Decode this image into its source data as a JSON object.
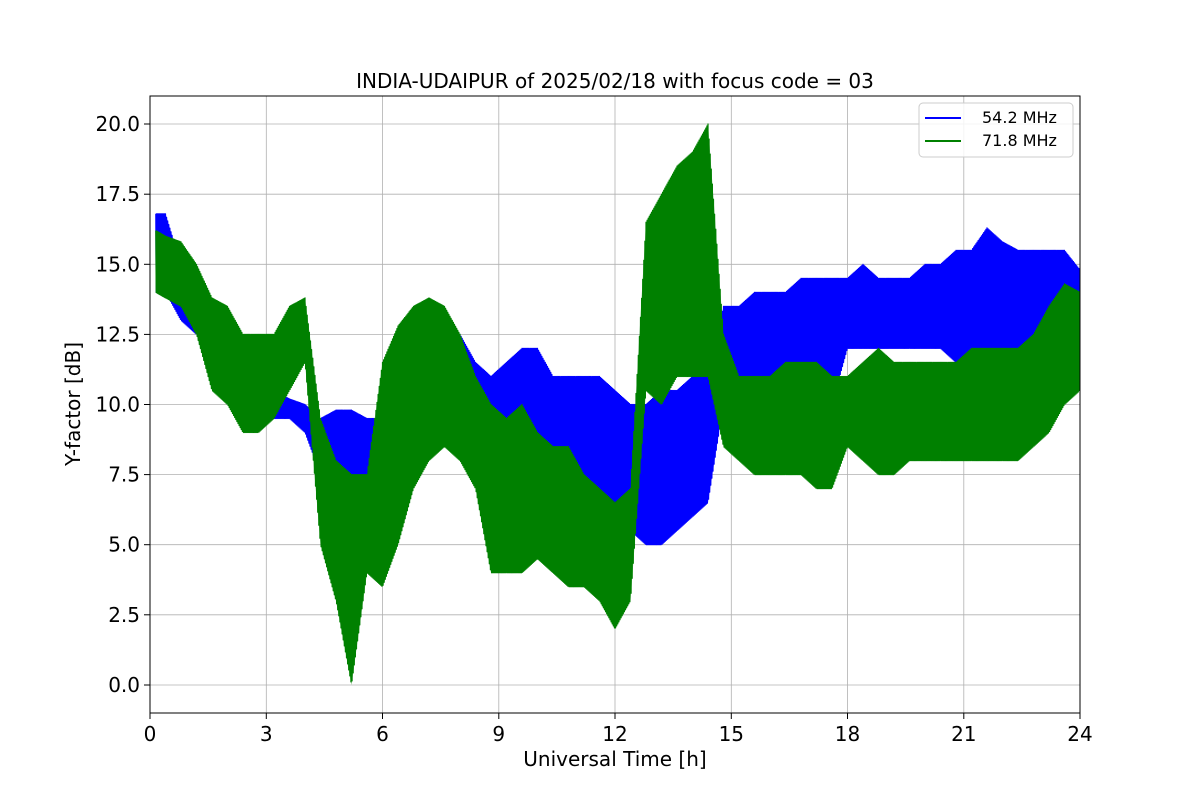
{
  "chart_data": {
    "type": "line",
    "title": "INDIA-UDAIPUR of 2025/02/18 with focus code = 03",
    "xlabel": "Universal Time [h]",
    "ylabel": "Y-factor [dB]",
    "xlim": [
      0,
      24
    ],
    "ylim": [
      -1,
      21
    ],
    "xticks": [
      0,
      3,
      6,
      9,
      12,
      15,
      18,
      21,
      24
    ],
    "xtick_labels": [
      "0",
      "3",
      "6",
      "9",
      "12",
      "15",
      "18",
      "21",
      "24"
    ],
    "yticks": [
      0,
      2.5,
      5,
      7.5,
      10,
      12.5,
      15,
      17.5,
      20
    ],
    "ytick_labels": [
      "0.0",
      "2.5",
      "5.0",
      "7.5",
      "10.0",
      "12.5",
      "15.0",
      "17.5",
      "20.0"
    ],
    "grid": true,
    "legend_position": "top-right",
    "colors": {
      "54.2 MHz": "#0000ff",
      "71.8 MHz": "#008000"
    },
    "series_style": "dense noisy trace; each series is drawn as a band between its lower and upper envelope",
    "series": [
      {
        "name": "54.2 MHz",
        "color": "#0000ff",
        "x": [
          0.15,
          0.4,
          0.8,
          1.2,
          1.6,
          2.0,
          2.4,
          2.8,
          3.2,
          3.6,
          4.0,
          4.4,
          4.8,
          5.2,
          5.6,
          6.0,
          6.4,
          6.8,
          7.2,
          7.6,
          8.0,
          8.4,
          8.8,
          9.2,
          9.6,
          10.0,
          10.4,
          10.8,
          11.2,
          11.6,
          12.0,
          12.4,
          12.8,
          13.2,
          13.6,
          14.0,
          14.4,
          14.8,
          15.2,
          15.6,
          16.0,
          16.4,
          16.8,
          17.2,
          17.6,
          18.0,
          18.4,
          18.8,
          19.2,
          19.6,
          20.0,
          20.4,
          20.8,
          21.2,
          21.6,
          22.0,
          22.4,
          22.8,
          23.2,
          23.6,
          24.0
        ],
        "lower": [
          14.0,
          14.0,
          13.0,
          12.5,
          11.0,
          10.0,
          9.5,
          9.5,
          9.5,
          9.5,
          9.0,
          7.5,
          7.0,
          7.0,
          7.0,
          6.5,
          7.5,
          8.0,
          8.5,
          8.5,
          8.5,
          7.5,
          7.0,
          7.0,
          6.5,
          7.0,
          6.0,
          6.0,
          6.0,
          6.5,
          5.5,
          5.5,
          5.0,
          5.0,
          5.5,
          6.0,
          6.5,
          10.0,
          10.0,
          10.5,
          10.5,
          10.5,
          10.5,
          10.0,
          10.0,
          12.0,
          12.0,
          12.0,
          12.0,
          12.0,
          12.0,
          12.0,
          11.5,
          12.0,
          12.0,
          12.0,
          12.0,
          12.5,
          12.5,
          13.0,
          13.0
        ],
        "upper": [
          16.8,
          16.8,
          15.0,
          14.0,
          13.5,
          12.5,
          11.5,
          10.5,
          10.5,
          10.2,
          10.0,
          9.5,
          9.8,
          9.8,
          9.5,
          9.5,
          10.5,
          11.0,
          12.5,
          12.5,
          12.5,
          11.5,
          11.0,
          11.5,
          12.0,
          12.0,
          11.0,
          11.0,
          11.0,
          11.0,
          10.5,
          10.0,
          10.0,
          10.5,
          10.5,
          11.0,
          11.0,
          13.5,
          13.5,
          14.0,
          14.0,
          14.0,
          14.5,
          14.5,
          14.5,
          14.5,
          15.0,
          14.5,
          14.5,
          14.5,
          15.0,
          15.0,
          15.5,
          15.5,
          16.3,
          15.8,
          15.5,
          15.5,
          15.5,
          15.5,
          14.8
        ]
      },
      {
        "name": "71.8 MHz",
        "color": "#008000",
        "x": [
          0.15,
          0.4,
          0.8,
          1.2,
          1.6,
          2.0,
          2.4,
          2.8,
          3.2,
          3.6,
          4.0,
          4.4,
          4.8,
          5.2,
          5.6,
          6.0,
          6.4,
          6.8,
          7.2,
          7.6,
          8.0,
          8.4,
          8.8,
          9.2,
          9.6,
          10.0,
          10.4,
          10.8,
          11.2,
          11.6,
          12.0,
          12.4,
          12.8,
          13.2,
          13.6,
          14.0,
          14.4,
          14.8,
          15.2,
          15.6,
          16.0,
          16.4,
          16.8,
          17.2,
          17.6,
          18.0,
          18.4,
          18.8,
          19.2,
          19.6,
          20.0,
          20.4,
          20.8,
          21.2,
          21.6,
          22.0,
          22.4,
          22.8,
          23.2,
          23.6,
          24.0
        ],
        "lower": [
          14.0,
          13.8,
          13.5,
          12.5,
          10.5,
          10.0,
          9.0,
          9.0,
          9.5,
          10.5,
          11.5,
          5.0,
          3.0,
          0.0,
          4.0,
          3.5,
          5.0,
          7.0,
          8.0,
          8.5,
          8.0,
          7.0,
          4.0,
          4.0,
          4.0,
          4.5,
          4.0,
          3.5,
          3.5,
          3.0,
          2.0,
          3.0,
          10.5,
          10.0,
          11.0,
          11.0,
          11.0,
          8.5,
          8.0,
          7.5,
          7.5,
          7.5,
          7.5,
          7.0,
          7.0,
          8.5,
          8.0,
          7.5,
          7.5,
          8.0,
          8.0,
          8.0,
          8.0,
          8.0,
          8.0,
          8.0,
          8.0,
          8.5,
          9.0,
          10.0,
          10.5
        ],
        "upper": [
          16.2,
          16.0,
          15.8,
          15.0,
          13.8,
          13.5,
          12.5,
          12.5,
          12.5,
          13.5,
          13.8,
          9.5,
          8.0,
          7.5,
          7.5,
          11.5,
          12.8,
          13.5,
          13.8,
          13.5,
          12.5,
          11.0,
          10.0,
          9.5,
          10.0,
          9.0,
          8.5,
          8.5,
          7.5,
          7.0,
          6.5,
          7.0,
          16.5,
          17.5,
          18.5,
          19.0,
          20.0,
          12.5,
          11.0,
          11.0,
          11.0,
          11.5,
          11.5,
          11.5,
          11.0,
          11.0,
          11.5,
          12.0,
          11.5,
          11.5,
          11.5,
          11.5,
          11.5,
          12.0,
          12.0,
          12.0,
          12.0,
          12.5,
          13.5,
          14.3,
          14.0
        ]
      }
    ]
  }
}
